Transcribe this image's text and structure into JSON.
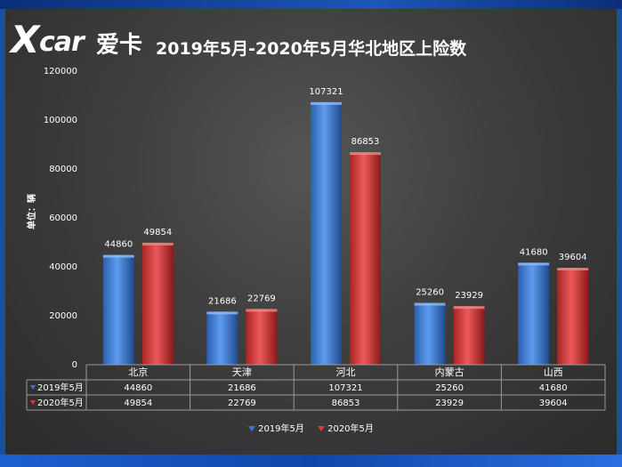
{
  "colors": {
    "s2019": "#3a78d6",
    "s2020": "#d83b3b"
  },
  "logo": {
    "x": "X",
    "car": "car",
    "cn": "爱卡"
  },
  "chart_data": {
    "type": "bar",
    "title": "2019年5月-2020年5月华北地区上险数",
    "ylabel": "单位：辆",
    "categories": [
      "北京",
      "天津",
      "河北",
      "内蒙古",
      "山西"
    ],
    "series": [
      {
        "name": "2019年5月",
        "values": [
          44860,
          21686,
          107321,
          25260,
          41680
        ]
      },
      {
        "name": "2020年5月",
        "values": [
          49854,
          22769,
          86853,
          23929,
          39604
        ]
      }
    ],
    "ylim": [
      0,
      120000
    ],
    "yticks": [
      "0",
      "20000",
      "40000",
      "60000",
      "80000",
      "100000",
      "120000"
    ],
    "data_table": true,
    "legend": "bottom"
  }
}
